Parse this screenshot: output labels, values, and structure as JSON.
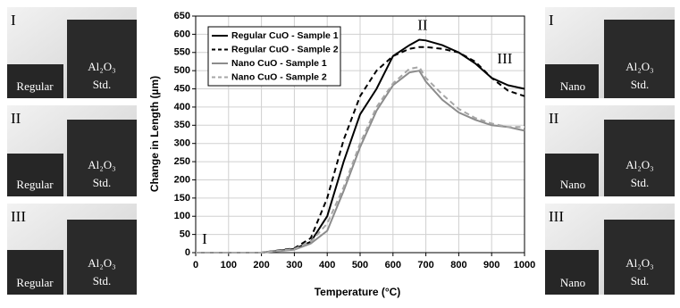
{
  "chart_data": {
    "type": "line",
    "x_label": "Temperature (°C)",
    "y_label": "Change in Length (µm)",
    "x": [
      0,
      100,
      200,
      300,
      350,
      400,
      450,
      500,
      550,
      600,
      650,
      680,
      700,
      750,
      800,
      850,
      900,
      950,
      1000
    ],
    "series": [
      {
        "name": "Regular CuO - Sample 1",
        "color": "#000000",
        "dashed": false,
        "values": [
          0,
          0,
          0,
          10,
          30,
          100,
          250,
          380,
          450,
          540,
          570,
          585,
          583,
          570,
          550,
          520,
          480,
          460,
          450
        ]
      },
      {
        "name": "Regular CuO - Sample 2",
        "color": "#000000",
        "dashed": true,
        "values": [
          0,
          0,
          0,
          12,
          40,
          150,
          310,
          430,
          500,
          540,
          560,
          565,
          565,
          560,
          550,
          525,
          480,
          445,
          430
        ]
      },
      {
        "name": "Nano CuO - Sample 1",
        "color": "#8c8c8c",
        "dashed": false,
        "values": [
          0,
          0,
          0,
          8,
          25,
          60,
          170,
          290,
          390,
          460,
          495,
          500,
          470,
          420,
          385,
          365,
          350,
          345,
          335
        ]
      },
      {
        "name": "Nano CuO - Sample 2",
        "color": "#a6a6a6",
        "dashed": true,
        "values": [
          0,
          0,
          0,
          10,
          30,
          80,
          180,
          300,
          400,
          465,
          505,
          510,
          480,
          435,
          395,
          370,
          355,
          345,
          345
        ]
      }
    ],
    "annotations": [
      "I",
      "II",
      "III"
    ],
    "xlim": [
      0,
      1000
    ],
    "xticks": [
      0,
      100,
      200,
      300,
      400,
      500,
      600,
      700,
      800,
      900,
      1000
    ],
    "ylim": [
      0,
      650
    ],
    "yticks": [
      0,
      50,
      100,
      150,
      200,
      250,
      300,
      350,
      400,
      450,
      500,
      550,
      600,
      650
    ],
    "grid": true,
    "legend": "upper left"
  },
  "panels": {
    "left": [
      {
        "stage": "I",
        "sample": "Regular",
        "standard": "Al₂O₃",
        "standard_label": "Std."
      },
      {
        "stage": "II",
        "sample": "Regular",
        "standard": "Al₂O₃",
        "standard_label": "Std."
      },
      {
        "stage": "III",
        "sample": "Regular",
        "standard": "Al₂O₃",
        "standard_label": "Std."
      }
    ],
    "right": [
      {
        "stage": "I",
        "sample": "Nano",
        "standard": "Al₂O₃",
        "standard_label": "Std."
      },
      {
        "stage": "II",
        "sample": "Nano",
        "standard": "Al₂O₃",
        "standard_label": "Std."
      },
      {
        "stage": "III",
        "sample": "Nano",
        "standard": "Al₂O₃",
        "standard_label": "Std."
      }
    ]
  }
}
